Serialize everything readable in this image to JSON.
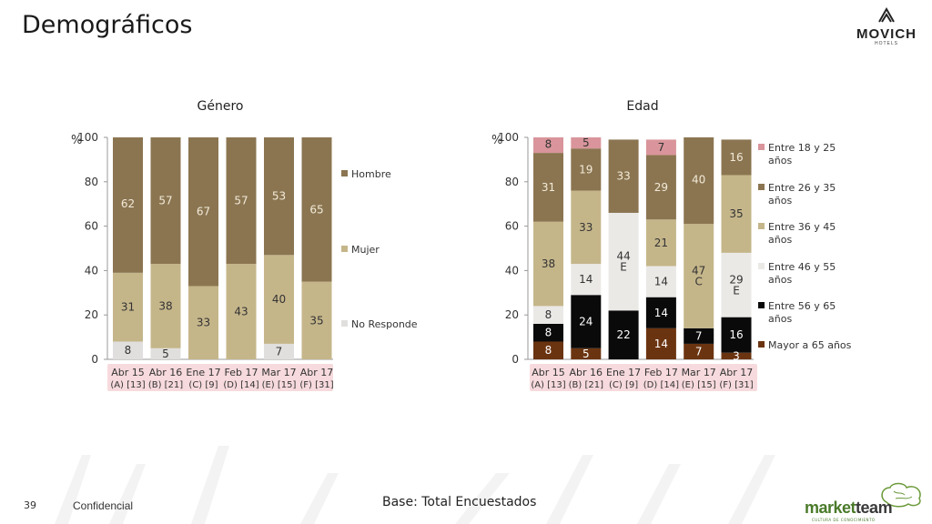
{
  "page": {
    "title": "Demográficos",
    "page_number": "39",
    "confidential": "Confidencial",
    "base": "Base: Total Encuestados",
    "brand": {
      "name": "MOVICH",
      "sub": "HOTELS"
    },
    "footer_brand": {
      "part1": "market",
      "part2": "team",
      "tagline": "CULTURA DE CONOCIMIENTO"
    },
    "colors": {
      "hombre": "#8b7551",
      "mujer": "#c5b68a",
      "noresp": "#e0dfdd",
      "label_bg": "#f7dadd"
    }
  },
  "chart_data": [
    {
      "type": "bar",
      "stacked": true,
      "title": "Género",
      "ylabel": "%",
      "ylim": [
        0,
        100
      ],
      "yticks": [
        0,
        20,
        40,
        60,
        80,
        100
      ],
      "categories": [
        [
          "Abr 15",
          "(A) [13]"
        ],
        [
          "Abr 16",
          "(B) [21]"
        ],
        [
          "Ene 17",
          "(C) [9]"
        ],
        [
          "Feb 17",
          "(D) [14]"
        ],
        [
          "Mar 17",
          "(E) [15]"
        ],
        [
          "Abr 17",
          "(F) [31]"
        ]
      ],
      "series": [
        {
          "name": "No Responde",
          "color": "#e0dfdd",
          "values": [
            8,
            5,
            0,
            0,
            7,
            0
          ],
          "labels": [
            "8",
            "5",
            "",
            "",
            "7",
            ""
          ],
          "label_color": "#333333"
        },
        {
          "name": "Mujer",
          "color": "#c5b68a",
          "values": [
            31,
            38,
            33,
            43,
            40,
            35
          ],
          "labels": [
            "31",
            "38",
            "33",
            "43",
            "40",
            "35"
          ],
          "label_color": "#333333"
        },
        {
          "name": "Hombre",
          "color": "#8b7551",
          "values": [
            62,
            57,
            67,
            57,
            53,
            65
          ],
          "labels": [
            "62",
            "57",
            "67",
            "57",
            "53",
            "65"
          ],
          "label_color": "#f2ead8"
        }
      ],
      "legend": [
        "Hombre",
        "Mujer",
        "No Responde"
      ]
    },
    {
      "type": "bar",
      "stacked": true,
      "title": "Edad",
      "ylabel": "%",
      "ylim": [
        0,
        100
      ],
      "yticks": [
        0,
        20,
        40,
        60,
        80,
        100
      ],
      "categories": [
        [
          "Abr 15",
          "(A) [13]"
        ],
        [
          "Abr 16",
          "(B) [21]"
        ],
        [
          "Ene 17",
          "(C) [9]"
        ],
        [
          "Feb 17",
          "(D) [14]"
        ],
        [
          "Mar 17",
          "(E) [15]"
        ],
        [
          "Abr 17",
          "(F) [31]"
        ]
      ],
      "series": [
        {
          "name": "Mayor a 65 años",
          "color": "#6b3410",
          "values": [
            8,
            5,
            0,
            14,
            7,
            3
          ],
          "labels": [
            "8",
            "5",
            "",
            "14",
            "7",
            "3"
          ],
          "label_color": "#ffffff"
        },
        {
          "name": "Entre 56 y 65 años",
          "color": "#0a0a0a",
          "values": [
            8,
            24,
            22,
            14,
            7,
            16
          ],
          "labels": [
            "8",
            "24",
            "22",
            "14",
            "7",
            "16"
          ],
          "label_color": "#ffffff"
        },
        {
          "name": "Entre 46 y 55 años",
          "color": "#ebe9e6",
          "values": [
            8,
            14,
            44,
            14,
            0,
            29
          ],
          "labels": [
            "8",
            "14",
            "44\nE",
            "14",
            "",
            "29\nE"
          ],
          "label_color": "#333333"
        },
        {
          "name": "Entre 36 y 45 años",
          "color": "#c5b68a",
          "values": [
            38,
            33,
            0,
            21,
            47,
            35
          ],
          "labels": [
            "38",
            "33",
            "",
            "21",
            "47\nC",
            "35"
          ],
          "label_color": "#333333"
        },
        {
          "name": "Entre 26 y 35 años",
          "color": "#8b7551",
          "values": [
            31,
            19,
            33,
            29,
            40,
            16
          ],
          "labels": [
            "31",
            "19",
            "33",
            "29",
            "40",
            "16"
          ],
          "label_color": "#f2ead8"
        },
        {
          "name": "Entre 18 y 25 años",
          "color": "#d9959b",
          "values": [
            8,
            5,
            0,
            7,
            0,
            0
          ],
          "labels": [
            "8",
            "5",
            "",
            "7",
            "",
            ""
          ],
          "label_color": "#333333"
        }
      ],
      "legend": [
        "Entre 18 y 25 años",
        "Entre 26 y 35 años",
        "Entre 36 y 45 años",
        "Entre 46 y 55 años",
        "Entre 56 y 65 años",
        "Mayor a 65 años"
      ]
    }
  ]
}
